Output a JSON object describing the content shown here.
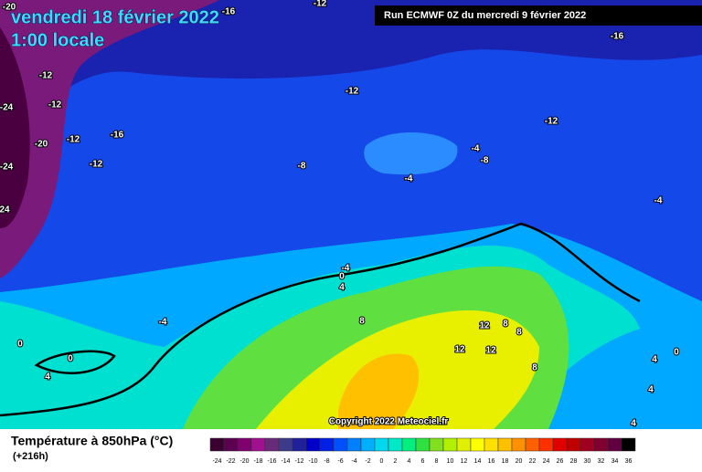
{
  "header": {
    "date": "vendredi 18 février 2022",
    "time": "1:00 locale",
    "run": "Run ECMWF 0Z du mercredi 9 février 2022"
  },
  "copyright": "Copyright 2022 Meteociel.fr",
  "footer": {
    "title": "Température à 850hPa (°C)",
    "lead": "(+216h)"
  },
  "legend": {
    "labels": [
      -24,
      -22,
      -20,
      -18,
      -16,
      -14,
      -12,
      -10,
      -8,
      -6,
      -4,
      -2,
      0,
      2,
      4,
      6,
      8,
      10,
      12,
      14,
      16,
      18,
      20,
      22,
      24,
      26,
      28,
      30,
      32,
      34,
      36
    ],
    "colors": [
      "#3a0030",
      "#5c0050",
      "#800070",
      "#a0108f",
      "#6a2a7a",
      "#3b3b8a",
      "#20209a",
      "#0000c8",
      "#0020e6",
      "#0050ff",
      "#0080ff",
      "#00b0ff",
      "#00d8f0",
      "#00e8c8",
      "#00f080",
      "#30e040",
      "#80e020",
      "#b0f000",
      "#e0f000",
      "#ffff00",
      "#ffe000",
      "#ffc000",
      "#ff9000",
      "#ff6000",
      "#ff3000",
      "#e00000",
      "#c00000",
      "#a00020",
      "#800030",
      "#600040",
      "#000000"
    ]
  },
  "isotherm_labels": [
    -20,
    -16,
    -12,
    -16,
    -12,
    -12,
    -24,
    -12,
    -12,
    -16,
    -20,
    -12,
    -24,
    -12,
    -8,
    -8,
    -4,
    -4,
    -4,
    24,
    -4,
    0,
    4,
    -4,
    8,
    12,
    8,
    8,
    12,
    12,
    0,
    0,
    4,
    4,
    0,
    4,
    8,
    4
  ]
}
